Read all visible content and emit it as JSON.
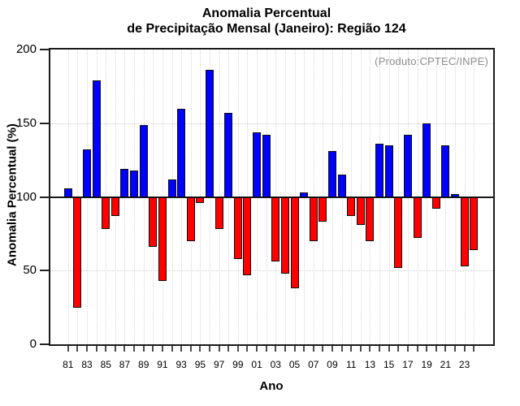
{
  "title": {
    "line1": "Anomalia Percentual",
    "line2": "de Precipitação Mensal (Janeiro): Região 124"
  },
  "source_credit": "(Produto:CPTEC/INPE)",
  "chart_data": {
    "type": "bar",
    "title": "Anomalia Percentual de Precipitação Mensal (Janeiro): Região 124",
    "xlabel": "Ano",
    "ylabel": "Anomalia Percentual (%)",
    "ylim": [
      0,
      200
    ],
    "yticks": [
      0,
      50,
      100,
      150,
      200
    ],
    "baseline": 100,
    "grid": "dotted vertical per year; dotted horizontal at 50 and 150; solid line at baseline 100",
    "legend_position": "none",
    "annotation": "(Produto:CPTEC/INPE)",
    "annotation_color": "#8c8c8c",
    "bar_color_above_baseline": "#0000ff",
    "bar_color_below_baseline": "#ff0000",
    "x_labeled_every": 2,
    "categories": [
      "81",
      "82",
      "83",
      "84",
      "85",
      "86",
      "87",
      "88",
      "89",
      "90",
      "91",
      "92",
      "93",
      "94",
      "95",
      "96",
      "97",
      "98",
      "99",
      "00",
      "01",
      "02",
      "03",
      "04",
      "05",
      "06",
      "07",
      "08",
      "09",
      "10",
      "11",
      "12",
      "13",
      "14",
      "15",
      "16",
      "17",
      "18",
      "19",
      "20",
      "21",
      "22",
      "23",
      "24"
    ],
    "values": [
      106,
      25,
      132,
      179,
      78,
      87,
      119,
      118,
      149,
      66,
      43,
      112,
      160,
      70,
      96,
      186,
      78,
      157,
      58,
      47,
      144,
      142,
      56,
      48,
      38,
      103,
      70,
      83,
      131,
      115,
      87,
      81,
      70,
      136,
      135,
      52,
      142,
      72,
      150,
      92,
      135,
      102,
      53,
      64
    ]
  }
}
